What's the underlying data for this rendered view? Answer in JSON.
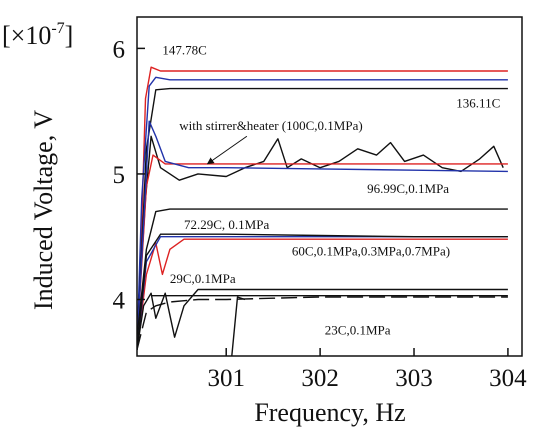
{
  "chart_data": {
    "type": "line",
    "title": "",
    "xlabel": "Frequency, Hz",
    "ylabel": "Induced Voltage, V",
    "scale_label_prefix": "[×10",
    "scale_label_exp": "-7",
    "scale_label_suffix": "]",
    "xlim": [
      300.05,
      304.15
    ],
    "ylim": [
      3.55,
      6.25
    ],
    "x_ticks": [
      301,
      302,
      303,
      304
    ],
    "y_ticks": [
      4,
      5,
      6
    ],
    "grid": false,
    "series": [
      {
        "color": "#dd2222",
        "dash": "",
        "points": [
          [
            300.05,
            3.6
          ],
          [
            300.1,
            4.6
          ],
          [
            300.14,
            5.6
          ],
          [
            300.2,
            5.85
          ],
          [
            300.3,
            5.82
          ],
          [
            300.5,
            5.82
          ],
          [
            301,
            5.82
          ],
          [
            302,
            5.82
          ],
          [
            303,
            5.82
          ],
          [
            304,
            5.82
          ]
        ]
      },
      {
        "color": "#2233aa",
        "dash": "",
        "points": [
          [
            300.05,
            3.6
          ],
          [
            300.1,
            4.8
          ],
          [
            300.18,
            5.7
          ],
          [
            300.25,
            5.77
          ],
          [
            300.4,
            5.75
          ],
          [
            301,
            5.75
          ],
          [
            302,
            5.75
          ],
          [
            303,
            5.75
          ],
          [
            304,
            5.75
          ]
        ]
      },
      {
        "color": "#111111",
        "dash": "",
        "points": [
          [
            300.05,
            3.6
          ],
          [
            300.15,
            5.2
          ],
          [
            300.25,
            5.67
          ],
          [
            300.4,
            5.68
          ],
          [
            301,
            5.68
          ],
          [
            302,
            5.68
          ],
          [
            303,
            5.68
          ],
          [
            304,
            5.68
          ]
        ]
      },
      {
        "color": "#111111",
        "dash": "",
        "points": [
          [
            300.05,
            3.7
          ],
          [
            300.14,
            4.8
          ],
          [
            300.2,
            5.3
          ],
          [
            300.3,
            5.05
          ],
          [
            300.5,
            4.95
          ],
          [
            300.7,
            5.0
          ],
          [
            301,
            4.98
          ],
          [
            301.2,
            5.05
          ],
          [
            301.4,
            5.1
          ],
          [
            301.55,
            5.28
          ],
          [
            301.65,
            5.05
          ],
          [
            301.8,
            5.12
          ],
          [
            302,
            5.05
          ],
          [
            302.2,
            5.1
          ],
          [
            302.4,
            5.2
          ],
          [
            302.6,
            5.15
          ],
          [
            302.75,
            5.25
          ],
          [
            302.9,
            5.1
          ],
          [
            303.1,
            5.15
          ],
          [
            303.3,
            5.05
          ],
          [
            303.5,
            5.02
          ],
          [
            303.7,
            5.12
          ],
          [
            303.85,
            5.22
          ],
          [
            303.95,
            5.05
          ]
        ]
      },
      {
        "color": "#dd2222",
        "dash": "",
        "points": [
          [
            300.05,
            3.65
          ],
          [
            300.15,
            4.9
          ],
          [
            300.22,
            5.15
          ],
          [
            300.35,
            5.08
          ],
          [
            301,
            5.08
          ],
          [
            302,
            5.08
          ],
          [
            303,
            5.08
          ],
          [
            304,
            5.08
          ]
        ]
      },
      {
        "color": "#2233aa",
        "dash": "",
        "points": [
          [
            300.05,
            3.65
          ],
          [
            300.12,
            4.6
          ],
          [
            300.18,
            5.42
          ],
          [
            300.25,
            5.3
          ],
          [
            300.35,
            5.1
          ],
          [
            300.6,
            5.05
          ],
          [
            301,
            5.05
          ],
          [
            302,
            5.04
          ],
          [
            303,
            5.03
          ],
          [
            304,
            5.02
          ]
        ]
      },
      {
        "color": "#111111",
        "dash": "",
        "points": [
          [
            300.05,
            3.7
          ],
          [
            300.15,
            4.4
          ],
          [
            300.25,
            4.7
          ],
          [
            300.4,
            4.72
          ],
          [
            301,
            4.72
          ],
          [
            302,
            4.72
          ],
          [
            303,
            4.72
          ],
          [
            304,
            4.72
          ]
        ]
      },
      {
        "color": "#dd2222",
        "dash": "",
        "points": [
          [
            300.05,
            3.6
          ],
          [
            300.15,
            4.2
          ],
          [
            300.25,
            4.45
          ],
          [
            300.32,
            4.2
          ],
          [
            300.4,
            4.4
          ],
          [
            300.55,
            4.48
          ],
          [
            301,
            4.48
          ],
          [
            302,
            4.48
          ],
          [
            303,
            4.48
          ],
          [
            304,
            4.48
          ]
        ]
      },
      {
        "color": "#2233aa",
        "dash": "",
        "points": [
          [
            300.05,
            3.6
          ],
          [
            300.15,
            4.3
          ],
          [
            300.3,
            4.5
          ],
          [
            301,
            4.5
          ],
          [
            302,
            4.5
          ],
          [
            303,
            4.5
          ],
          [
            304,
            4.5
          ]
        ]
      },
      {
        "color": "#111111",
        "dash": "",
        "points": [
          [
            300.05,
            3.6
          ],
          [
            300.15,
            4.35
          ],
          [
            300.3,
            4.52
          ],
          [
            301,
            4.52
          ],
          [
            302,
            4.51
          ],
          [
            303,
            4.5
          ],
          [
            304,
            4.5
          ]
        ]
      },
      {
        "color": "#111111",
        "dash": "",
        "points": [
          [
            300.05,
            3.6
          ],
          [
            300.12,
            3.95
          ],
          [
            300.2,
            4.05
          ],
          [
            300.25,
            3.85
          ],
          [
            300.35,
            4.05
          ],
          [
            300.45,
            3.7
          ],
          [
            300.55,
            3.95
          ],
          [
            300.7,
            4.08
          ],
          [
            301,
            4.08
          ],
          [
            302,
            4.08
          ],
          [
            303,
            4.08
          ],
          [
            304,
            4.08
          ]
        ]
      },
      {
        "color": "#111111",
        "dash": "16 6",
        "points": [
          [
            300.05,
            3.6
          ],
          [
            300.15,
            3.9
          ],
          [
            300.25,
            3.95
          ],
          [
            300.4,
            3.98
          ],
          [
            300.7,
            4.0
          ],
          [
            301,
            4.0
          ],
          [
            301.5,
            4.01
          ],
          [
            302,
            4.02
          ],
          [
            303,
            4.02
          ],
          [
            304,
            4.02
          ]
        ]
      },
      {
        "color": "#111111",
        "dash": "",
        "points": [
          [
            301.06,
            3.55
          ],
          [
            301.12,
            4.02
          ],
          [
            301.2,
            4.0
          ]
        ]
      },
      {
        "color": "#111111",
        "dash": "",
        "points": [
          [
            300.2,
            4.03
          ],
          [
            300.6,
            4.03
          ],
          [
            301,
            4.03
          ],
          [
            302,
            4.03
          ],
          [
            303,
            4.03
          ],
          [
            304,
            4.03
          ]
        ]
      }
    ],
    "annotations": [
      {
        "text": "147.78C",
        "x": 300.32,
        "y": 5.95
      },
      {
        "text": "136.11C",
        "x": 303.45,
        "y": 5.53
      },
      {
        "text": "with stirrer&heater (100C,0.1MPa)",
        "x": 300.5,
        "y": 5.35
      },
      {
        "text": "96.99C,0.1MPa",
        "x": 302.5,
        "y": 4.85
      },
      {
        "text": "72.29C, 0.1MPa",
        "x": 300.55,
        "y": 4.56
      },
      {
        "text": "60C,0.1MPa,0.3MPa,0.7MPa)",
        "x": 301.7,
        "y": 4.35
      },
      {
        "text": "29C,0.1MPa",
        "x": 300.4,
        "y": 4.13
      },
      {
        "text": "23C,0.1MPa",
        "x": 302.05,
        "y": 3.72
      }
    ],
    "arrow": {
      "from": [
        301.22,
        5.3
      ],
      "to": [
        300.8,
        5.08
      ]
    }
  }
}
